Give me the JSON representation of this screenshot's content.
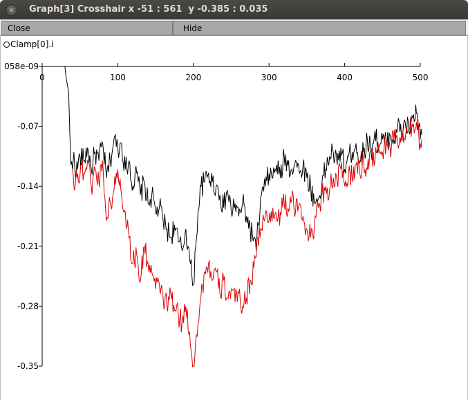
{
  "window": {
    "title": "Graph[3] Crosshair x -51 : 561  y -0.385 : 0.035",
    "close_icon_glyph": "×"
  },
  "menu": {
    "close_label": "Close",
    "hide_label": "Hide"
  },
  "legend": {
    "label": "Clamp[0].i"
  },
  "chart_data": {
    "type": "line",
    "title": "",
    "xlabel": "",
    "ylabel": "",
    "xlim": [
      0,
      500
    ],
    "ylim": [
      -0.35,
      0.0
    ],
    "x_ticks": [
      0,
      100,
      200,
      300,
      400,
      500
    ],
    "x_tick_labels": [
      "0",
      "100",
      "200",
      "300",
      "400",
      "500"
    ],
    "y_ticks": [
      0.0,
      -0.07,
      -0.14,
      -0.21,
      -0.28,
      -0.35
    ],
    "y_tick_labels": [
      "058e-09",
      "-0.07",
      "-0.14",
      "-0.21",
      "-0.28",
      "-0.35"
    ],
    "grid": false,
    "legend_position": "top-left",
    "series": [
      {
        "color": "#000000",
        "x": [
          30,
          32,
          35,
          36,
          37,
          38,
          40,
          42,
          45,
          50,
          55,
          60,
          65,
          70,
          75,
          80,
          85,
          90,
          95,
          100,
          105,
          110,
          115,
          120,
          125,
          130,
          135,
          140,
          145,
          150,
          155,
          160,
          165,
          170,
          175,
          180,
          185,
          190,
          195,
          198,
          200,
          203,
          206,
          210,
          215,
          220,
          225,
          230,
          235,
          240,
          245,
          250,
          255,
          260,
          265,
          270,
          275,
          280,
          283,
          286,
          290,
          295,
          300,
          305,
          310,
          315,
          320,
          325,
          330,
          335,
          340,
          345,
          350,
          355,
          360,
          365,
          370,
          375,
          380,
          385,
          390,
          395,
          400,
          405,
          410,
          415,
          420,
          425,
          430,
          435,
          440,
          445,
          450,
          455,
          460,
          465,
          470,
          475,
          480,
          485,
          490,
          495,
          498,
          500,
          502
        ],
        "y": [
          0.0,
          -0.015,
          -0.03,
          -0.06,
          -0.09,
          -0.115,
          -0.12,
          -0.1,
          -0.125,
          -0.105,
          -0.11,
          -0.095,
          -0.12,
          -0.1,
          -0.11,
          -0.09,
          -0.13,
          -0.11,
          -0.085,
          -0.095,
          -0.09,
          -0.12,
          -0.11,
          -0.14,
          -0.125,
          -0.15,
          -0.135,
          -0.16,
          -0.15,
          -0.17,
          -0.165,
          -0.18,
          -0.19,
          -0.2,
          -0.185,
          -0.205,
          -0.215,
          -0.19,
          -0.225,
          -0.245,
          -0.255,
          -0.21,
          -0.17,
          -0.14,
          -0.135,
          -0.125,
          -0.135,
          -0.14,
          -0.15,
          -0.165,
          -0.145,
          -0.17,
          -0.16,
          -0.175,
          -0.16,
          -0.175,
          -0.19,
          -0.2,
          -0.215,
          -0.185,
          -0.15,
          -0.14,
          -0.125,
          -0.13,
          -0.115,
          -0.13,
          -0.105,
          -0.115,
          -0.12,
          -0.11,
          -0.125,
          -0.115,
          -0.13,
          -0.14,
          -0.16,
          -0.155,
          -0.135,
          -0.12,
          -0.105,
          -0.1,
          -0.115,
          -0.095,
          -0.12,
          -0.105,
          -0.1,
          -0.09,
          -0.11,
          -0.1,
          -0.085,
          -0.1,
          -0.075,
          -0.095,
          -0.085,
          -0.09,
          -0.08,
          -0.085,
          -0.07,
          -0.08,
          -0.065,
          -0.075,
          -0.06,
          -0.055,
          -0.07,
          -0.085,
          -0.08
        ]
      },
      {
        "color": "#dd0000",
        "x": [
          40,
          42,
          45,
          48,
          52,
          55,
          60,
          65,
          70,
          75,
          80,
          85,
          90,
          95,
          100,
          105,
          110,
          115,
          120,
          125,
          130,
          135,
          140,
          145,
          150,
          155,
          160,
          165,
          170,
          175,
          180,
          185,
          190,
          195,
          198,
          200,
          203,
          206,
          210,
          215,
          220,
          225,
          230,
          235,
          240,
          245,
          250,
          255,
          260,
          265,
          270,
          275,
          280,
          285,
          290,
          295,
          300,
          305,
          310,
          315,
          320,
          325,
          330,
          335,
          340,
          345,
          350,
          355,
          360,
          365,
          370,
          375,
          380,
          385,
          390,
          395,
          400,
          405,
          410,
          415,
          420,
          425,
          430,
          435,
          440,
          445,
          450,
          455,
          460,
          465,
          470,
          475,
          480,
          485,
          490,
          495,
          498,
          500,
          502
        ],
        "y": [
          -0.12,
          -0.14,
          -0.12,
          -0.135,
          -0.115,
          -0.125,
          -0.11,
          -0.14,
          -0.12,
          -0.135,
          -0.11,
          -0.18,
          -0.16,
          -0.145,
          -0.12,
          -0.15,
          -0.17,
          -0.2,
          -0.23,
          -0.22,
          -0.25,
          -0.21,
          -0.23,
          -0.24,
          -0.26,
          -0.255,
          -0.27,
          -0.28,
          -0.265,
          -0.285,
          -0.29,
          -0.3,
          -0.28,
          -0.31,
          -0.34,
          -0.35,
          -0.32,
          -0.3,
          -0.27,
          -0.24,
          -0.23,
          -0.25,
          -0.24,
          -0.265,
          -0.25,
          -0.27,
          -0.26,
          -0.275,
          -0.265,
          -0.28,
          -0.27,
          -0.25,
          -0.235,
          -0.2,
          -0.19,
          -0.175,
          -0.18,
          -0.165,
          -0.18,
          -0.17,
          -0.16,
          -0.165,
          -0.155,
          -0.17,
          -0.16,
          -0.175,
          -0.19,
          -0.2,
          -0.185,
          -0.165,
          -0.15,
          -0.14,
          -0.145,
          -0.13,
          -0.135,
          -0.12,
          -0.14,
          -0.125,
          -0.13,
          -0.115,
          -0.125,
          -0.11,
          -0.12,
          -0.1,
          -0.11,
          -0.095,
          -0.1,
          -0.09,
          -0.095,
          -0.085,
          -0.09,
          -0.08,
          -0.085,
          -0.075,
          -0.07,
          -0.065,
          -0.08,
          -0.09,
          -0.085
        ]
      }
    ]
  }
}
